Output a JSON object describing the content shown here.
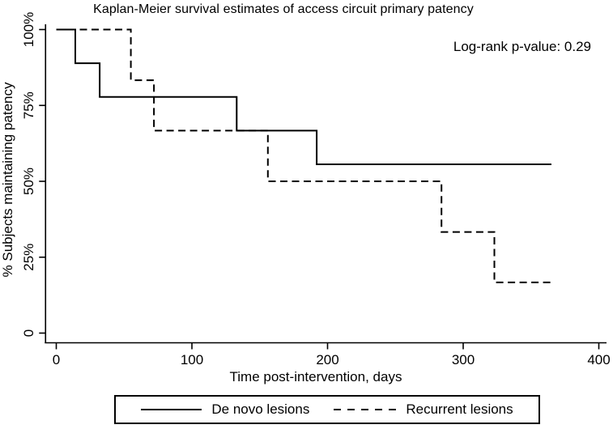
{
  "chart_data": {
    "type": "line",
    "subtype": "kaplan-meier-step",
    "title": "Kaplan-Meier survival estimates of access circuit primary patency",
    "annotation": "Log-rank p-value: 0.29",
    "xlabel": "Time post-intervention, days",
    "ylabel": "% Subjects maintaining patency",
    "xlim": [
      0,
      400
    ],
    "ylim": [
      0,
      100
    ],
    "x_ticks": {
      "values": [
        0,
        100,
        200,
        300,
        400
      ],
      "labels": [
        "0",
        "100",
        "200",
        "300",
        "400"
      ]
    },
    "y_ticks": {
      "values": [
        0,
        25,
        50,
        75,
        100
      ],
      "labels": [
        "0",
        "25%",
        "50%",
        "75%",
        "100%"
      ]
    },
    "grid": false,
    "legend_position": "bottom",
    "ink_color": "#000000",
    "background_color": "#ffffff",
    "series": [
      {
        "name": "De novo lesions",
        "line_style": "solid",
        "points": [
          [
            0,
            100
          ],
          [
            14,
            100
          ],
          [
            14,
            88.9
          ],
          [
            32,
            88.9
          ],
          [
            32,
            77.8
          ],
          [
            133,
            77.8
          ],
          [
            133,
            66.7
          ],
          [
            192,
            66.7
          ],
          [
            192,
            55.6
          ],
          [
            365,
            55.6
          ]
        ]
      },
      {
        "name": "Recurrent lesions",
        "line_style": "dashed",
        "points": [
          [
            0,
            100
          ],
          [
            55,
            100
          ],
          [
            55,
            83.3
          ],
          [
            72,
            83.3
          ],
          [
            72,
            66.7
          ],
          [
            156,
            66.7
          ],
          [
            156,
            50
          ],
          [
            284,
            50
          ],
          [
            284,
            33.3
          ],
          [
            323,
            33.3
          ],
          [
            323,
            16.7
          ],
          [
            365,
            16.7
          ]
        ]
      }
    ]
  }
}
